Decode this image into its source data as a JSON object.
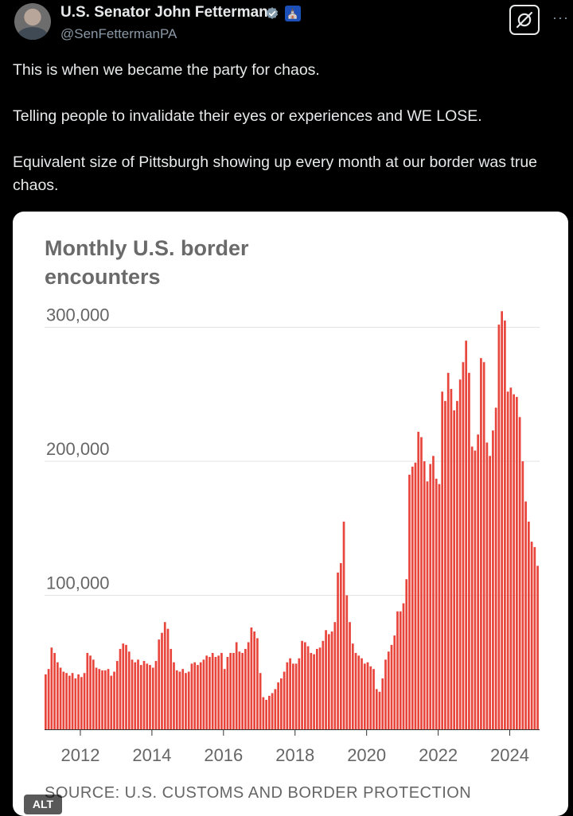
{
  "post": {
    "author_name": "U.S. Senator John Fetterman",
    "author_handle": "@SenFettermanPA",
    "verified_icon": "verified-badge-icon",
    "affiliation_icon": "government-badge-icon",
    "gov_badge_glyph": "⛪",
    "more_glyph": "···",
    "text_paragraphs": [
      "This is when we became the party for chaos.",
      "Telling people to invalidate their eyes or experiences and WE LOSE.",
      "Equivalent size of Pittsburgh showing up every month at our border was true chaos."
    ],
    "alt_badge": "ALT"
  },
  "chart_data": {
    "type": "bar",
    "title": "Monthly U.S. border encounters",
    "source": "SOURCE: U.S. CUSTOMS AND BORDER PROTECTION",
    "bar_color": "#e8453c",
    "grid": true,
    "ylim": [
      0,
      300000
    ],
    "yticks": [
      100000,
      200000,
      300000
    ],
    "ytick_labels": [
      "100,000",
      "200,000",
      "300,000"
    ],
    "xticks": [
      "2012",
      "2014",
      "2016",
      "2018",
      "2020",
      "2022",
      "2024"
    ],
    "x_start": "2011-01",
    "x_end": "2024-10",
    "values": [
      41000,
      45000,
      61000,
      57000,
      50000,
      46000,
      43000,
      42000,
      40000,
      42000,
      38000,
      41000,
      39000,
      42000,
      57000,
      55000,
      52000,
      46000,
      45000,
      44000,
      44000,
      45000,
      40000,
      43000,
      51000,
      60000,
      64000,
      63000,
      58000,
      52000,
      50000,
      52000,
      48000,
      51000,
      49000,
      48000,
      46000,
      51000,
      67000,
      72000,
      80000,
      75000,
      60000,
      50000,
      44000,
      43000,
      45000,
      42000,
      43000,
      49000,
      50000,
      48000,
      50000,
      52000,
      55000,
      54000,
      57000,
      54000,
      55000,
      57000,
      45000,
      54000,
      57000,
      57000,
      65000,
      58000,
      57000,
      60000,
      65000,
      76000,
      73000,
      68000,
      42000,
      24000,
      22000,
      25000,
      27000,
      30000,
      35000,
      38000,
      43000,
      50000,
      53000,
      49000,
      49000,
      53000,
      66000,
      65000,
      62000,
      57000,
      56000,
      60000,
      61000,
      66000,
      74000,
      71000,
      73000,
      80000,
      117000,
      124000,
      155000,
      100000,
      80000,
      64000,
      57000,
      55000,
      53000,
      49000,
      50000,
      47000,
      45000,
      30000,
      28000,
      38000,
      52000,
      58000,
      63000,
      70000,
      88000,
      88000,
      94000,
      112000,
      190000,
      196000,
      199000,
      222000,
      218000,
      200000,
      185000,
      198000,
      204000,
      187000,
      183000,
      252000,
      245000,
      266000,
      254000,
      238000,
      245000,
      261000,
      274000,
      290000,
      266000,
      211000,
      208000,
      220000,
      277000,
      274000,
      214000,
      204000,
      223000,
      240000,
      302000,
      312000,
      305000,
      252000,
      255000,
      250000,
      248000,
      233000,
      200000,
      170000,
      155000,
      140000,
      136000,
      122000
    ]
  }
}
